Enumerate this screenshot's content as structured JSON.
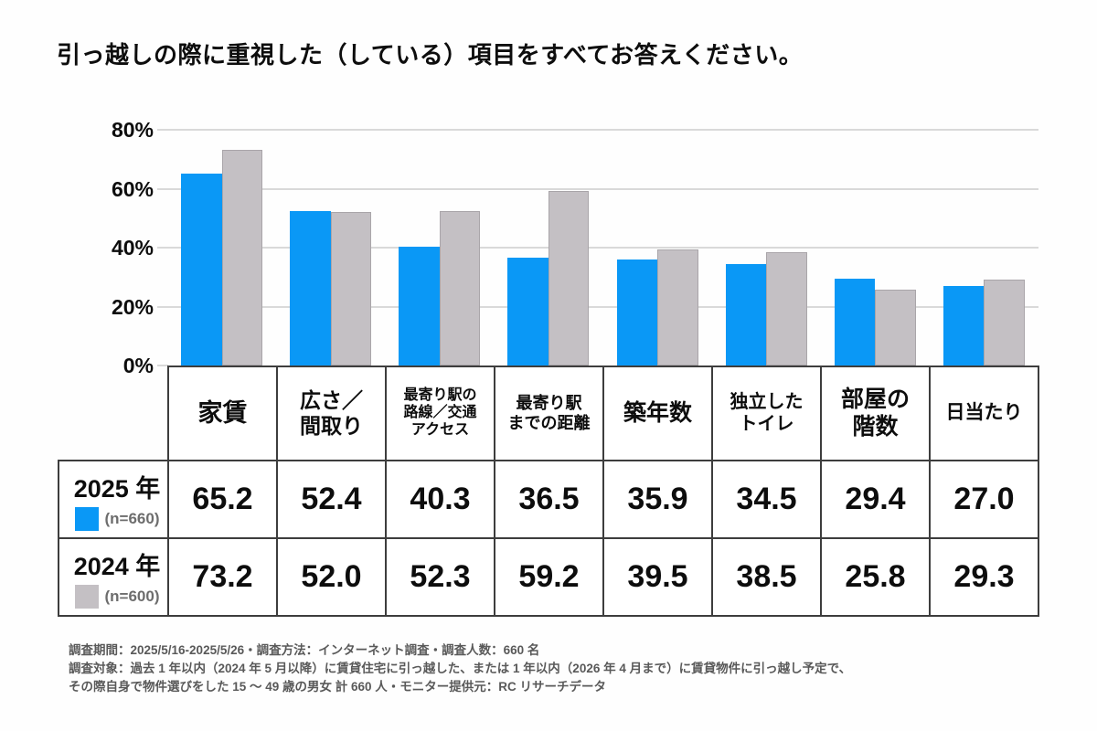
{
  "title": "引っ越しの際に重視した（している）項目をすべてお答えください。",
  "colors": {
    "blue": "#0a98f6",
    "gray": "#c4c0c4",
    "gray_border": "#a9a5a9",
    "gridline": "#d9d9d9",
    "table_border": "#3d3d3d",
    "footer_text": "#595959"
  },
  "chart_data": {
    "type": "bar",
    "title": "引っ越しの際に重視した（している）項目をすべてお答えください。",
    "categories": [
      "家賃",
      "広さ／間取り",
      "最寄り駅の路線／交通アクセス",
      "最寄り駅までの距離",
      "築年数",
      "独立したトイレ",
      "部屋の階数",
      "日当たり"
    ],
    "category_lines": [
      "家賃",
      "広さ／\n間取り",
      "最寄り駅の\n路線／交通\nアクセス",
      "最寄り駅\nまでの距離",
      "築年数",
      "独立した\nトイレ",
      "部屋の\n階数",
      "日当たり"
    ],
    "series": [
      {
        "name": "2025 年",
        "n_label": "(n=660)",
        "color": "#0a98f6",
        "border": "",
        "values": [
          65.2,
          52.4,
          40.3,
          36.5,
          35.9,
          34.5,
          29.4,
          27.0
        ],
        "display": [
          "65.2",
          "52.4",
          "40.3",
          "36.5",
          "35.9",
          "34.5",
          "29.4",
          "27.0"
        ]
      },
      {
        "name": "2024 年",
        "n_label": "(n=600)",
        "color": "#c4c0c4",
        "border": "#a9a5a9",
        "values": [
          73.2,
          52.0,
          52.3,
          59.2,
          39.5,
          38.5,
          25.8,
          29.3
        ],
        "display": [
          "73.2",
          "52.0",
          "52.3",
          "59.2",
          "39.5",
          "38.5",
          "25.8",
          "29.3"
        ]
      }
    ],
    "xlabel": "",
    "ylabel": "",
    "ylim": [
      0,
      80
    ],
    "ytick_values": [
      80,
      60,
      40,
      20,
      0
    ],
    "ytick_labels": [
      "80%",
      "60%",
      "40%",
      "20%",
      "0%"
    ],
    "grid": true,
    "legend_position": "table-rows"
  },
  "footer": {
    "lines": [
      "調査期間：2025/5/16-2025/5/26・調査方法：インターネット調査・調査人数：660 名",
      "調査対象：過去 1 年以内（2024 年 5 月以降）に賃貸住宅に引っ越した、または 1 年以内（2026 年 4 月まで）に賃貸物件に引っ越し予定で、",
      "その際自身で物件選びをした 15 ～ 49 歳の男女 計 660 人・モニター提供元：RC リサーチデータ"
    ]
  }
}
